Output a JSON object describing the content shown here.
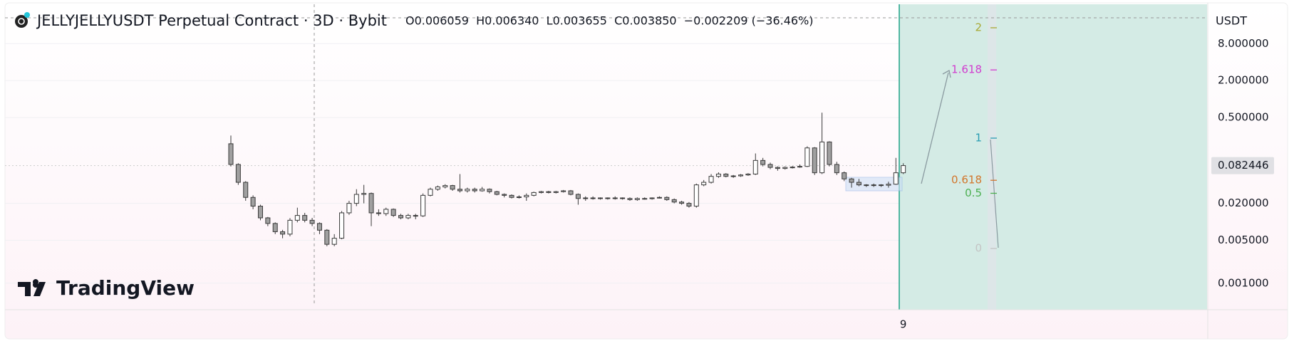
{
  "chart_data": {
    "type": "candlestick",
    "title": "JELLYJELLYUSDT Perpetual Contract · 3D · Bybit",
    "ohlc_legend": "O0.006059  H0.006340  L0.003655  C0.003850  −0.002209 (−36.46%)",
    "currency": "USDT",
    "watermark": "TradingView",
    "log_scale": true,
    "grid": true,
    "up_color": "#ffffff",
    "down_color": "#a0a0a0",
    "border_color": "#3a3a3a",
    "ylim": [
      0.00037,
      35
    ],
    "yticks": [
      {
        "value": 8,
        "label": "8.000000"
      },
      {
        "value": 2,
        "label": "2.000000"
      },
      {
        "value": 0.5,
        "label": "0.500000"
      },
      {
        "value": 0.02,
        "label": "0.020000"
      },
      {
        "value": 0.005,
        "label": "0.005000"
      },
      {
        "value": 0.001,
        "label": "0.001000"
      }
    ],
    "last_price": {
      "value": 0.082446,
      "label": "0.082446"
    },
    "xticks": [
      {
        "value": 91,
        "label": "9"
      }
    ],
    "open": [
      0.187,
      0.086,
      0.044,
      0.025,
      0.018,
      0.0116,
      0.0094,
      0.0069,
      0.0063,
      0.0106,
      0.0127,
      0.0106,
      0.0094,
      0.0073,
      0.0043,
      0.0054,
      0.014,
      0.02,
      0.028,
      0.029,
      0.014,
      0.0136,
      0.016,
      0.0127,
      0.0116,
      0.0127,
      0.0125,
      0.027,
      0.034,
      0.037,
      0.039,
      0.034,
      0.032,
      0.034,
      0.032,
      0.034,
      0.031,
      0.028,
      0.027,
      0.025,
      0.0255,
      0.027,
      0.03,
      0.031,
      0.03,
      0.031,
      0.032,
      0.028,
      0.024,
      0.0245,
      0.024,
      0.0245,
      0.024,
      0.0245,
      0.024,
      0.023,
      0.024,
      0.0238,
      0.0245,
      0.025,
      0.023,
      0.021,
      0.02,
      0.018,
      0.04,
      0.044,
      0.055,
      0.06,
      0.055,
      0.056,
      0.058,
      0.06,
      0.1,
      0.086,
      0.077,
      0.074,
      0.077,
      0.078,
      0.08,
      0.16,
      0.063,
      0.2,
      0.086,
      0.063,
      0.05,
      0.044,
      0.04,
      0.039,
      0.04,
      0.0395,
      0.041,
      0.063
    ],
    "high": [
      0.254,
      0.09,
      0.046,
      0.027,
      0.019,
      0.012,
      0.0098,
      0.0074,
      0.0115,
      0.017,
      0.014,
      0.0116,
      0.0098,
      0.0076,
      0.0063,
      0.015,
      0.022,
      0.034,
      0.04,
      0.03,
      0.016,
      0.017,
      0.0165,
      0.0135,
      0.0135,
      0.0135,
      0.029,
      0.036,
      0.039,
      0.041,
      0.04,
      0.06,
      0.036,
      0.036,
      0.037,
      0.035,
      0.032,
      0.029,
      0.028,
      0.027,
      0.029,
      0.031,
      0.032,
      0.032,
      0.032,
      0.033,
      0.033,
      0.029,
      0.026,
      0.026,
      0.025,
      0.025,
      0.026,
      0.025,
      0.025,
      0.025,
      0.025,
      0.025,
      0.026,
      0.026,
      0.024,
      0.022,
      0.021,
      0.042,
      0.048,
      0.06,
      0.064,
      0.062,
      0.058,
      0.06,
      0.062,
      0.13,
      0.11,
      0.092,
      0.08,
      0.08,
      0.081,
      0.086,
      0.17,
      0.165,
      0.6,
      0.205,
      0.095,
      0.066,
      0.052,
      0.05,
      0.041,
      0.042,
      0.041,
      0.045,
      0.11,
      0.09
    ],
    "low": [
      0.08,
      0.04,
      0.022,
      0.016,
      0.0106,
      0.0085,
      0.0063,
      0.0054,
      0.0058,
      0.0098,
      0.0098,
      0.0085,
      0.0063,
      0.004,
      0.004,
      0.0052,
      0.013,
      0.018,
      0.02,
      0.0085,
      0.0125,
      0.0125,
      0.012,
      0.011,
      0.011,
      0.011,
      0.012,
      0.026,
      0.032,
      0.035,
      0.032,
      0.03,
      0.03,
      0.03,
      0.031,
      0.029,
      0.027,
      0.025,
      0.024,
      0.024,
      0.022,
      0.026,
      0.029,
      0.029,
      0.029,
      0.03,
      0.027,
      0.019,
      0.022,
      0.023,
      0.023,
      0.023,
      0.023,
      0.023,
      0.022,
      0.022,
      0.023,
      0.023,
      0.024,
      0.022,
      0.02,
      0.019,
      0.017,
      0.017,
      0.038,
      0.042,
      0.052,
      0.053,
      0.052,
      0.054,
      0.056,
      0.058,
      0.08,
      0.072,
      0.068,
      0.071,
      0.074,
      0.076,
      0.078,
      0.058,
      0.06,
      0.08,
      0.058,
      0.046,
      0.036,
      0.038,
      0.037,
      0.037,
      0.037,
      0.036,
      0.04,
      0.06
    ],
    "close": [
      0.086,
      0.044,
      0.025,
      0.018,
      0.0116,
      0.0094,
      0.0069,
      0.0063,
      0.0106,
      0.0127,
      0.0106,
      0.0094,
      0.0073,
      0.0043,
      0.0054,
      0.014,
      0.02,
      0.028,
      0.029,
      0.014,
      0.0136,
      0.016,
      0.0127,
      0.0116,
      0.0127,
      0.0125,
      0.027,
      0.034,
      0.037,
      0.039,
      0.034,
      0.032,
      0.034,
      0.032,
      0.034,
      0.031,
      0.028,
      0.027,
      0.025,
      0.0255,
      0.027,
      0.03,
      0.031,
      0.03,
      0.031,
      0.032,
      0.028,
      0.024,
      0.0245,
      0.024,
      0.0245,
      0.024,
      0.0245,
      0.024,
      0.023,
      0.024,
      0.0238,
      0.0245,
      0.025,
      0.023,
      0.021,
      0.02,
      0.018,
      0.04,
      0.044,
      0.055,
      0.06,
      0.055,
      0.056,
      0.058,
      0.06,
      0.1,
      0.086,
      0.077,
      0.074,
      0.077,
      0.078,
      0.08,
      0.16,
      0.063,
      0.2,
      0.086,
      0.063,
      0.05,
      0.044,
      0.04,
      0.039,
      0.04,
      0.0395,
      0.041,
      0.063,
      0.0824
    ],
    "fib_levels": [
      {
        "value": 2,
        "color": "#a8a832"
      },
      {
        "value": 1.618,
        "color": "#d13ccf"
      },
      {
        "value": 1,
        "color": "#2a9db2"
      },
      {
        "value": 0.618,
        "color": "#d2762c"
      },
      {
        "value": 0.5,
        "color": "#4caf50"
      },
      {
        "value": 0,
        "color": "#c4c4c4"
      }
    ]
  }
}
